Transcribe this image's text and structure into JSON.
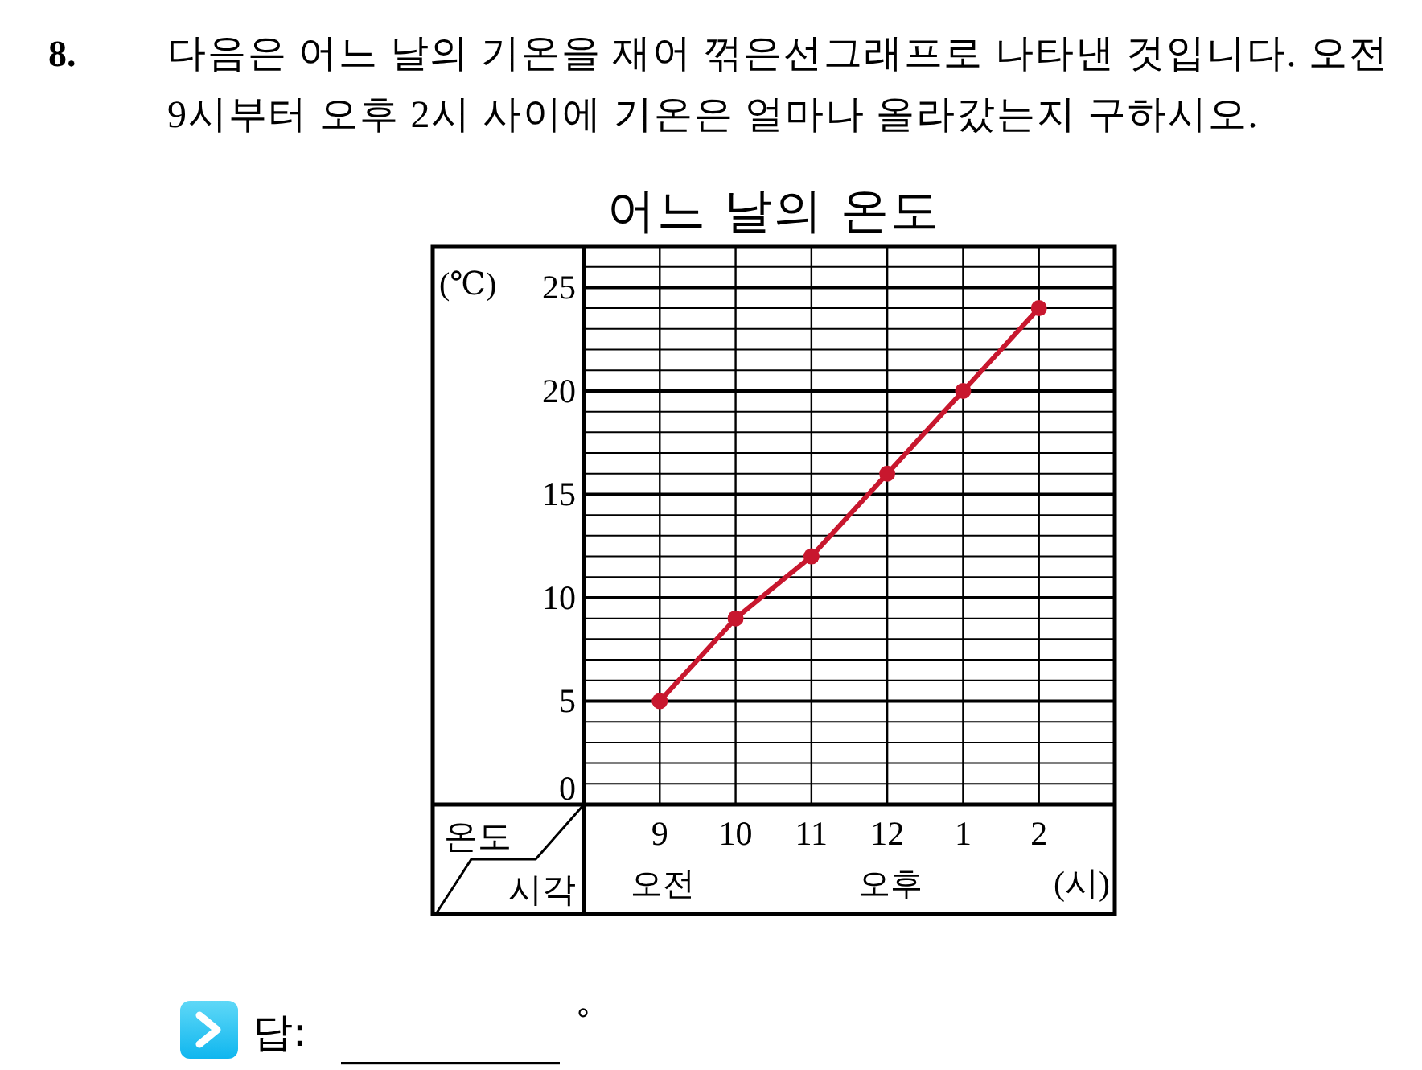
{
  "chart_data": {
    "type": "line",
    "title": "어느 날의 온도",
    "xlabel": "(시)",
    "ylabel": "(℃)",
    "categories": [
      "9",
      "10",
      "11",
      "12",
      "1",
      "2"
    ],
    "values": [
      5,
      9,
      12,
      16,
      20,
      24
    ],
    "color": "#c8172e",
    "ylim": [
      0,
      27
    ],
    "yticks": [
      0,
      {
        "value": 1,
        "label": null
      },
      {
        "value": 2,
        "label": null
      },
      {
        "value": 3,
        "label": null
      },
      {
        "value": 4,
        "label": null
      },
      5,
      {
        "value": 6,
        "label": null
      },
      {
        "value": 7,
        "label": null
      },
      {
        "value": 8,
        "label": null
      },
      {
        "value": 9,
        "label": null
      },
      10,
      {
        "value": 11,
        "label": null
      },
      {
        "value": 12,
        "label": null
      },
      {
        "value": 13,
        "label": null
      },
      {
        "value": 14,
        "label": null
      },
      15,
      {
        "value": 16,
        "label": null
      },
      {
        "value": 17,
        "label": null
      },
      {
        "value": 18,
        "label": null
      },
      {
        "value": 19,
        "label": null
      },
      20,
      {
        "value": 21,
        "label": null
      },
      {
        "value": 22,
        "label": null
      },
      {
        "value": 23,
        "label": null
      },
      {
        "value": 24,
        "label": null
      },
      25,
      {
        "value": 26,
        "label": null
      }
    ],
    "grid": true,
    "marker": "circle",
    "annotations": [
      "8.",
      "다음은 어느 날의 기온을 재어 꺾은선그래프로 나타낸 것입니다. 오전\n9시부터 오후 2시 사이에 기온은 얼마나 올라갔는지 구하시오.",
      "온도",
      "시각",
      "오전",
      "오후",
      "답:",
      "°"
    ]
  }
}
